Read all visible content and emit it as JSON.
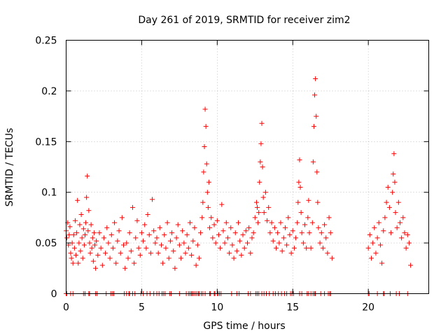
{
  "chart_data": {
    "type": "scatter",
    "title": "Day 261 of 2019, SRMTID for receiver zim2",
    "xlabel": "GPS time / hours",
    "ylabel": "SRMTID / TECUs",
    "xlim": [
      0,
      24
    ],
    "ylim": [
      0,
      0.25
    ],
    "xticks": [
      0,
      5,
      10,
      15,
      20
    ],
    "yticks": [
      0,
      0.05,
      0.1,
      0.15,
      0.2,
      0.25
    ],
    "xtick_labels": [
      "0",
      "5",
      "10",
      "15",
      "20"
    ],
    "ytick_labels": [
      "0",
      "0.05",
      "0.1",
      "0.15",
      "0.2",
      "0.25"
    ],
    "grid": true,
    "marker": "+",
    "color": "#ff0000",
    "series": [
      {
        "name": "SRMTID",
        "points": [
          [
            0.0,
            0.062
          ],
          [
            0.05,
            0.055
          ],
          [
            0.1,
            0.07
          ],
          [
            0.15,
            0.048
          ],
          [
            0.2,
            0.058
          ],
          [
            0.25,
            0.066
          ],
          [
            0.3,
            0.04
          ],
          [
            0.35,
            0.035
          ],
          [
            0.4,
            0.05
          ],
          [
            0.45,
            0.03
          ],
          [
            0.5,
            0.058
          ],
          [
            0.55,
            0.045
          ],
          [
            0.6,
            0.072
          ],
          [
            0.65,
            0.038
          ],
          [
            0.7,
            0.06
          ],
          [
            0.75,
            0.092
          ],
          [
            0.8,
            0.03
          ],
          [
            0.85,
            0.05
          ],
          [
            0.9,
            0.068
          ],
          [
            0.95,
            0.042
          ],
          [
            1.0,
            0.078
          ],
          [
            1.05,
            0.055
          ],
          [
            1.1,
            0.035
          ],
          [
            1.15,
            0.064
          ],
          [
            1.2,
            0.048
          ],
          [
            1.25,
            0.058
          ],
          [
            1.3,
            0.07
          ],
          [
            1.35,
            0.095
          ],
          [
            1.4,
            0.116
          ],
          [
            1.45,
            0.062
          ],
          [
            1.5,
            0.082
          ],
          [
            1.55,
            0.05
          ],
          [
            1.6,
            0.04
          ],
          [
            1.65,
            0.068
          ],
          [
            1.7,
            0.045
          ],
          [
            1.75,
            0.055
          ],
          [
            1.8,
            0.032
          ],
          [
            1.85,
            0.06
          ],
          [
            1.9,
            0.048
          ],
          [
            1.95,
            0.025
          ],
          [
            2.0,
            0.052
          ],
          [
            2.1,
            0.038
          ],
          [
            2.2,
            0.06
          ],
          [
            2.3,
            0.045
          ],
          [
            2.4,
            0.028
          ],
          [
            2.5,
            0.055
          ],
          [
            2.6,
            0.04
          ],
          [
            2.7,
            0.065
          ],
          [
            2.8,
            0.05
          ],
          [
            2.9,
            0.035
          ],
          [
            3.0,
            0.058
          ],
          [
            3.1,
            0.045
          ],
          [
            3.2,
            0.07
          ],
          [
            3.3,
            0.03
          ],
          [
            3.4,
            0.052
          ],
          [
            3.5,
            0.062
          ],
          [
            3.6,
            0.04
          ],
          [
            3.7,
            0.075
          ],
          [
            3.8,
            0.048
          ],
          [
            3.9,
            0.025
          ],
          [
            4.0,
            0.05
          ],
          [
            4.1,
            0.035
          ],
          [
            4.2,
            0.06
          ],
          [
            4.3,
            0.042
          ],
          [
            4.4,
            0.085
          ],
          [
            4.5,
            0.03
          ],
          [
            4.6,
            0.055
          ],
          [
            4.7,
            0.072
          ],
          [
            4.8,
            0.045
          ],
          [
            4.9,
            0.038
          ],
          [
            5.0,
            0.06
          ],
          [
            5.1,
            0.052
          ],
          [
            5.2,
            0.068
          ],
          [
            5.3,
            0.045
          ],
          [
            5.4,
            0.078
          ],
          [
            5.5,
            0.058
          ],
          [
            5.6,
            0.04
          ],
          [
            5.7,
            0.093
          ],
          [
            5.8,
            0.062
          ],
          [
            5.9,
            0.05
          ],
          [
            6.0,
            0.055
          ],
          [
            6.1,
            0.04
          ],
          [
            6.2,
            0.065
          ],
          [
            6.3,
            0.048
          ],
          [
            6.4,
            0.03
          ],
          [
            6.5,
            0.058
          ],
          [
            6.6,
            0.045
          ],
          [
            6.7,
            0.07
          ],
          [
            6.8,
            0.035
          ],
          [
            6.9,
            0.052
          ],
          [
            7.0,
            0.06
          ],
          [
            7.1,
            0.042
          ],
          [
            7.2,
            0.025
          ],
          [
            7.3,
            0.055
          ],
          [
            7.4,
            0.068
          ],
          [
            7.5,
            0.048
          ],
          [
            7.6,
            0.035
          ],
          [
            7.7,
            0.062
          ],
          [
            7.8,
            0.05
          ],
          [
            7.9,
            0.04
          ],
          [
            8.0,
            0.058
          ],
          [
            8.1,
            0.045
          ],
          [
            8.2,
            0.07
          ],
          [
            8.3,
            0.038
          ],
          [
            8.4,
            0.052
          ],
          [
            8.5,
            0.065
          ],
          [
            8.6,
            0.028
          ],
          [
            8.7,
            0.048
          ],
          [
            8.8,
            0.035
          ],
          [
            8.9,
            0.06
          ],
          [
            9.0,
            0.075
          ],
          [
            9.05,
            0.09
          ],
          [
            9.1,
            0.12
          ],
          [
            9.15,
            0.145
          ],
          [
            9.2,
            0.182
          ],
          [
            9.25,
            0.165
          ],
          [
            9.3,
            0.128
          ],
          [
            9.35,
            0.1
          ],
          [
            9.4,
            0.085
          ],
          [
            9.45,
            0.11
          ],
          [
            9.5,
            0.065
          ],
          [
            9.6,
            0.075
          ],
          [
            9.7,
            0.055
          ],
          [
            9.8,
            0.068
          ],
          [
            9.9,
            0.05
          ],
          [
            10.0,
            0.072
          ],
          [
            10.1,
            0.058
          ],
          [
            10.2,
            0.045
          ],
          [
            10.3,
            0.088
          ],
          [
            10.4,
            0.062
          ],
          [
            10.5,
            0.05
          ],
          [
            10.6,
            0.07
          ],
          [
            10.7,
            0.055
          ],
          [
            10.8,
            0.04
          ],
          [
            10.9,
            0.065
          ],
          [
            11.0,
            0.048
          ],
          [
            11.1,
            0.035
          ],
          [
            11.2,
            0.06
          ],
          [
            11.3,
            0.042
          ],
          [
            11.4,
            0.07
          ],
          [
            11.5,
            0.052
          ],
          [
            11.6,
            0.038
          ],
          [
            11.7,
            0.058
          ],
          [
            11.8,
            0.045
          ],
          [
            11.9,
            0.062
          ],
          [
            12.0,
            0.05
          ],
          [
            12.1,
            0.065
          ],
          [
            12.2,
            0.04
          ],
          [
            12.3,
            0.055
          ],
          [
            12.4,
            0.06
          ],
          [
            12.5,
            0.075
          ],
          [
            12.6,
            0.09
          ],
          [
            12.65,
            0.085
          ],
          [
            12.7,
            0.07
          ],
          [
            12.75,
            0.08
          ],
          [
            12.8,
            0.11
          ],
          [
            12.85,
            0.13
          ],
          [
            12.9,
            0.148
          ],
          [
            12.95,
            0.168
          ],
          [
            13.0,
            0.125
          ],
          [
            13.05,
            0.095
          ],
          [
            13.1,
            0.08
          ],
          [
            13.2,
            0.1
          ],
          [
            13.3,
            0.072
          ],
          [
            13.4,
            0.085
          ],
          [
            13.5,
            0.06
          ],
          [
            13.6,
            0.07
          ],
          [
            13.7,
            0.052
          ],
          [
            13.8,
            0.065
          ],
          [
            13.9,
            0.045
          ],
          [
            14.0,
            0.06
          ],
          [
            14.1,
            0.05
          ],
          [
            14.2,
            0.07
          ],
          [
            14.3,
            0.042
          ],
          [
            14.4,
            0.055
          ],
          [
            14.5,
            0.065
          ],
          [
            14.6,
            0.048
          ],
          [
            14.7,
            0.075
          ],
          [
            14.8,
            0.058
          ],
          [
            14.9,
            0.04
          ],
          [
            15.0,
            0.062
          ],
          [
            15.1,
            0.045
          ],
          [
            15.2,
            0.055
          ],
          [
            15.3,
            0.07
          ],
          [
            15.35,
            0.09
          ],
          [
            15.4,
            0.11
          ],
          [
            15.45,
            0.132
          ],
          [
            15.5,
            0.105
          ],
          [
            15.55,
            0.08
          ],
          [
            15.6,
            0.06
          ],
          [
            15.7,
            0.05
          ],
          [
            15.8,
            0.068
          ],
          [
            15.9,
            0.045
          ],
          [
            16.0,
            0.075
          ],
          [
            16.05,
            0.092
          ],
          [
            16.1,
            0.06
          ],
          [
            16.2,
            0.045
          ],
          [
            16.3,
            0.07
          ],
          [
            16.35,
            0.13
          ],
          [
            16.4,
            0.165
          ],
          [
            16.45,
            0.196
          ],
          [
            16.5,
            0.212
          ],
          [
            16.55,
            0.175
          ],
          [
            16.6,
            0.12
          ],
          [
            16.65,
            0.09
          ],
          [
            16.7,
            0.065
          ],
          [
            16.8,
            0.05
          ],
          [
            16.9,
            0.06
          ],
          [
            17.0,
            0.045
          ],
          [
            17.1,
            0.068
          ],
          [
            17.2,
            0.055
          ],
          [
            17.3,
            0.04
          ],
          [
            17.4,
            0.075
          ],
          [
            17.5,
            0.06
          ],
          [
            17.6,
            0.035
          ],
          [
            20.0,
            0.045
          ],
          [
            20.1,
            0.058
          ],
          [
            20.2,
            0.035
          ],
          [
            20.3,
            0.05
          ],
          [
            20.4,
            0.065
          ],
          [
            20.5,
            0.04
          ],
          [
            20.6,
            0.055
          ],
          [
            20.7,
            0.07
          ],
          [
            20.8,
            0.048
          ],
          [
            20.9,
            0.03
          ],
          [
            21.0,
            0.062
          ],
          [
            21.1,
            0.075
          ],
          [
            21.2,
            0.09
          ],
          [
            21.3,
            0.105
          ],
          [
            21.4,
            0.085
          ],
          [
            21.5,
            0.06
          ],
          [
            21.6,
            0.1
          ],
          [
            21.65,
            0.118
          ],
          [
            21.7,
            0.138
          ],
          [
            21.75,
            0.11
          ],
          [
            21.8,
            0.08
          ],
          [
            21.9,
            0.065
          ],
          [
            22.0,
            0.09
          ],
          [
            22.1,
            0.07
          ],
          [
            22.2,
            0.055
          ],
          [
            22.3,
            0.075
          ],
          [
            22.4,
            0.06
          ],
          [
            22.5,
            0.045
          ],
          [
            22.6,
            0.058
          ],
          [
            22.7,
            0.05
          ],
          [
            22.8,
            0.028
          ]
        ],
        "zero_points": [
          0.0,
          0.05,
          0.3,
          0.45,
          1.15,
          1.25,
          1.5,
          1.55,
          1.95,
          2.05,
          2.65,
          2.95,
          3.05,
          3.15,
          3.85,
          4.0,
          4.15,
          4.2,
          4.4,
          4.55,
          4.95,
          5.1,
          5.35,
          5.55,
          5.8,
          6.0,
          6.15,
          6.35,
          6.45,
          6.55,
          6.85,
          6.95,
          7.5,
          7.95,
          8.1,
          8.2,
          8.3,
          8.35,
          8.45,
          8.55,
          8.65,
          8.75,
          8.8,
          8.95,
          9.05,
          9.2,
          9.5,
          9.55,
          9.8,
          9.85,
          10.0,
          10.05,
          10.15,
          10.25,
          10.95,
          11.3,
          11.45,
          12.05,
          12.2,
          12.55,
          12.65,
          12.75,
          12.95,
          13.1,
          13.25,
          13.45,
          13.7,
          13.85,
          14.05,
          14.25,
          14.45,
          14.6,
          14.85,
          14.95,
          15.05,
          15.45,
          15.6,
          15.95,
          16.05,
          16.2,
          16.35,
          16.45,
          16.5,
          16.85,
          17.1,
          17.35,
          17.45,
          17.5,
          20.0,
          20.05,
          20.6,
          21.0,
          21.05,
          21.45,
          21.85,
          22.05,
          22.6
        ]
      }
    ]
  }
}
